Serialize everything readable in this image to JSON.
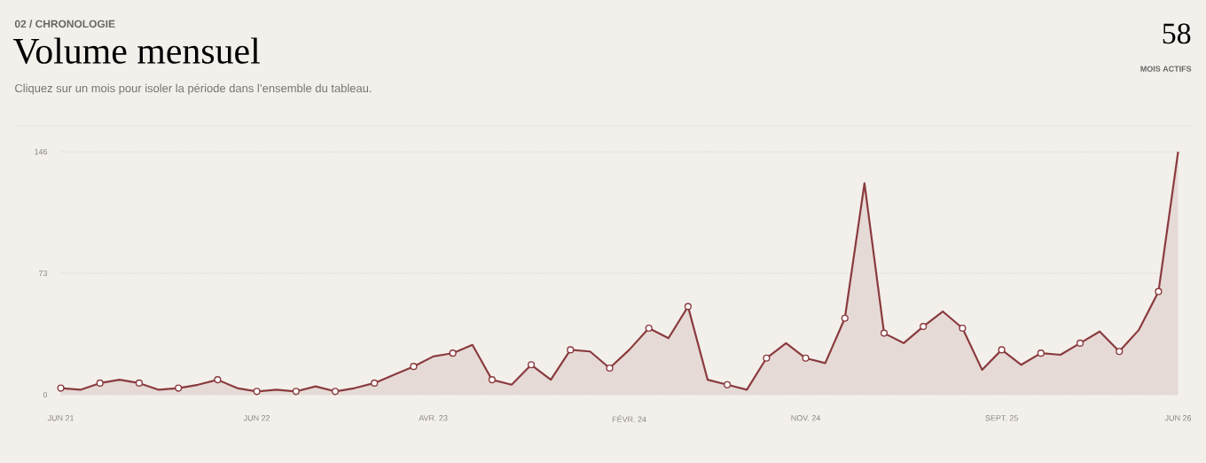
{
  "chart_data": {
    "type": "area",
    "title": "Volume mensuel",
    "subtitle": "Cliquez sur un mois pour isoler la période dans l’ensemble du tableau.",
    "annotations": [
      "02 / CHRONOLOGIE",
      "58",
      "MOIS ACTIFS"
    ],
    "categories": [
      "JUN 21",
      null,
      null,
      null,
      null,
      null,
      null,
      null,
      null,
      null,
      "JUN 22",
      null,
      null,
      null,
      null,
      null,
      null,
      null,
      null,
      "AVR. 23",
      null,
      null,
      null,
      null,
      null,
      null,
      null,
      null,
      null,
      "FÉVR. 24",
      null,
      null,
      null,
      null,
      null,
      null,
      null,
      null,
      "NOV. 24",
      null,
      null,
      null,
      null,
      null,
      null,
      null,
      null,
      null,
      "SEPT. 25",
      null,
      null,
      null,
      null,
      null,
      null,
      null,
      null,
      "JUN 26"
    ],
    "series": [
      {
        "color": "#8a3b3e",
        "values": [
          4,
          3,
          7,
          9,
          7,
          3,
          4,
          6,
          9,
          4,
          2,
          3,
          2,
          5,
          2,
          4,
          7,
          12,
          17,
          23,
          25,
          30,
          9,
          6,
          18,
          9,
          27,
          26,
          16,
          27,
          40,
          34,
          53,
          9,
          6,
          3,
          22,
          31,
          22,
          19,
          46,
          127,
          37,
          31,
          41,
          50,
          40,
          15,
          27,
          18,
          25,
          24,
          31,
          38,
          26,
          39,
          62,
          146
        ]
      }
    ],
    "ylim": [
      0,
      146
    ],
    "yticks": [
      0,
      73,
      146
    ],
    "grid": "y",
    "marker": "circle",
    "line_style": "solid"
  }
}
